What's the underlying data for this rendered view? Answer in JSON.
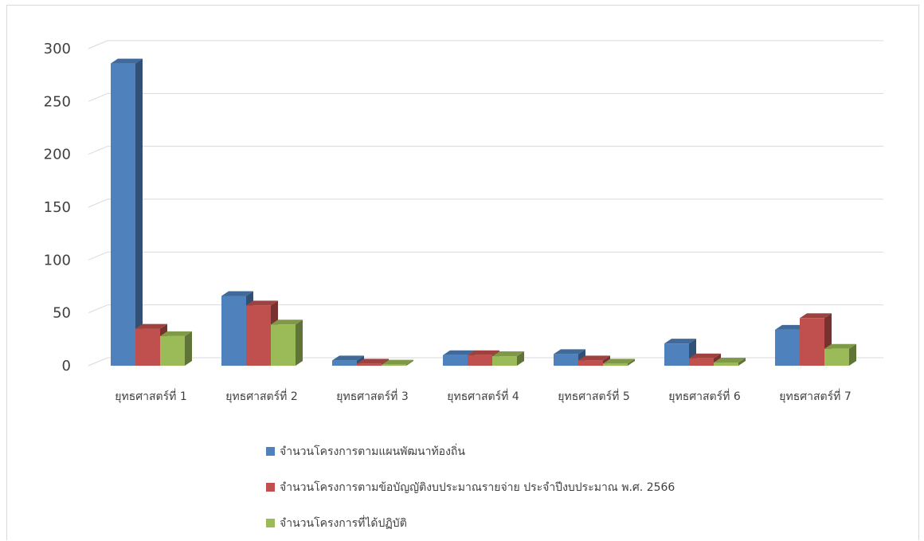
{
  "chart_data": {
    "type": "bar",
    "style": "3d-clustered-column",
    "title": "",
    "xlabel": "",
    "ylabel": "",
    "ylim": [
      0,
      300
    ],
    "yticks": [
      0,
      50,
      100,
      150,
      200,
      250,
      300
    ],
    "grid": true,
    "legend_position": "bottom",
    "categories": [
      "ยุทธศาสตร์ที่ 1",
      "ยุทธศาสตร์ที่ 2",
      "ยุทธศาสตร์ที่ 3",
      "ยุทธศาสตร์ที่ 4",
      "ยุทธศาสตร์ที่ 5",
      "ยุทธศาสตร์ที่ 6",
      "ยุทธศาสตร์ที่ 7"
    ],
    "series": [
      {
        "name": "จำนวนโครงการตามแผนพัฒนาท้องถิ่น",
        "color": "#4f81bd",
        "values": [
          286,
          66,
          5,
          10,
          11,
          21,
          34
        ]
      },
      {
        "name": "จำนวนโครงการตามข้อบัญญัติงบประมาณรายจ่าย ประจำปีงบประมาณ พ.ศ. 2566",
        "color": "#c0504d",
        "values": [
          35,
          57,
          2,
          10,
          5,
          7,
          45
        ]
      },
      {
        "name": "จำนวนโครงการที่ได้ปฏิบัติ",
        "color": "#9bbb59",
        "values": [
          28,
          39,
          1,
          9,
          2,
          3,
          16
        ]
      }
    ]
  }
}
